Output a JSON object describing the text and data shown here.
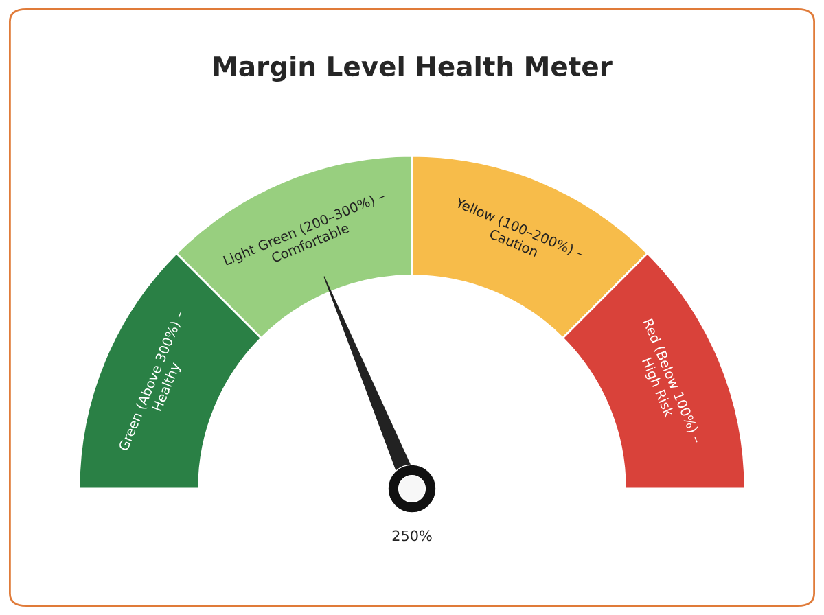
{
  "chart_data": {
    "type": "donut",
    "title": "Margin Level Health Meter",
    "categories": [
      "Green (Above 300%) –\nHealthy",
      "Light Green (200–300%) –\nComfortable",
      "Yellow (100–200%) –\nCaution",
      "Red (Below 100%) –\nHigh Risk"
    ],
    "values": [
      25,
      25,
      25,
      25
    ],
    "colors": [
      "#2a8045",
      "#98cf7f",
      "#f7bc4a",
      "#d9423a"
    ],
    "needle": "Light Green (200–300%) –\nComfortable",
    "annotations": [
      "250%"
    ]
  }
}
